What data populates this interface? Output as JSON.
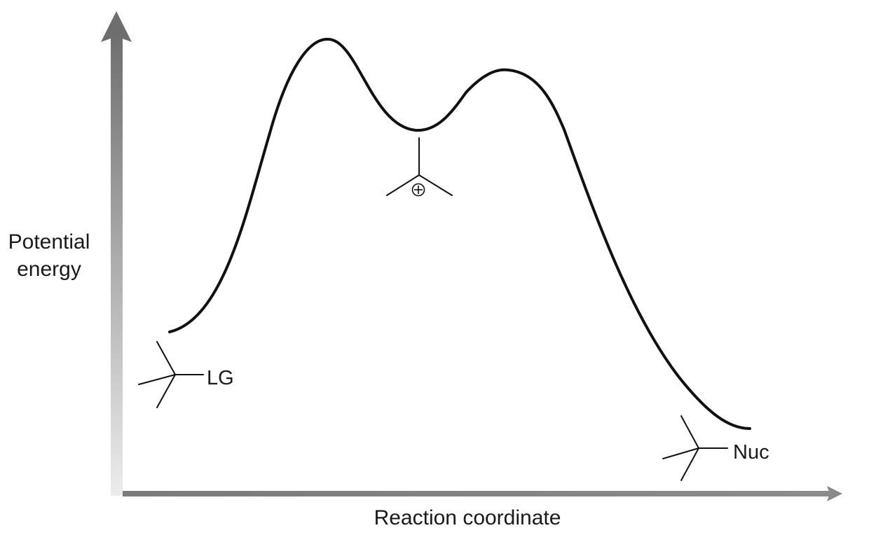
{
  "y_axis": {
    "label_line1": "Potential",
    "label_line2": "energy"
  },
  "x_axis": {
    "label": "Reaction coordinate"
  },
  "molecules": {
    "reactant_group": "LG",
    "intermediate_charge": "⊕",
    "product_group": "Nuc"
  },
  "colors": {
    "curve": "#111111",
    "axis_dark": "#737373",
    "axis_light": "#e8e8e8"
  }
}
